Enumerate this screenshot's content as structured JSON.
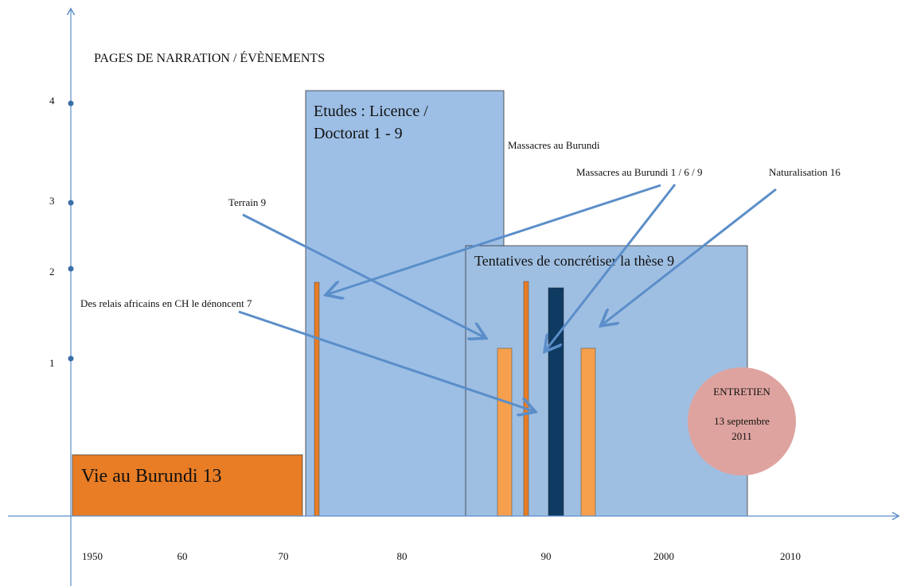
{
  "title": "PAGES DE NARRATION / ÉVÈNEMENTS",
  "y_axis": {
    "ticks": [
      "4",
      "3",
      "2",
      "1"
    ]
  },
  "x_axis": {
    "ticks": [
      "1950",
      "60",
      "70",
      "80",
      "90",
      "2000",
      "2010"
    ]
  },
  "boxes": [
    {
      "label": "Vie au Burundi 13"
    },
    {
      "label_lines": [
        "Etudes : Licence /",
        "Doctorat 1 - 9"
      ]
    },
    {
      "label": "Tentatives de concrétiser la thèse 9"
    }
  ],
  "annotations": [
    "Massacres au Burundi",
    "Massacres au Burundi  1 / 6 / 9",
    "Naturalisation 16",
    "Terrain  9",
    "Des relais africains en CH le dénoncent 7"
  ],
  "interview": {
    "lines": [
      "ENTRETIEN",
      "13 septembre",
      "2011"
    ]
  }
}
